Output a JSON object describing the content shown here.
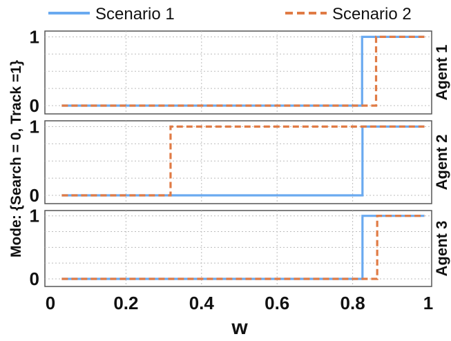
{
  "chart_data": {
    "type": "line",
    "xlabel": "w",
    "ylabel": "Mode: {Search = 0, Track =1}",
    "xlim": [
      0.03,
      0.99
    ],
    "x_ticks": [
      "0",
      "0.2",
      "0.4",
      "0.6",
      "0.8",
      "1"
    ],
    "y_ticks": [
      "0",
      "1"
    ],
    "ylim": [
      -0.15,
      1.18
    ],
    "grid": true,
    "legend": {
      "position": "top",
      "entries": [
        "Scenario 1",
        "Scenario 2"
      ]
    },
    "colors": {
      "Scenario 1": "#6aaaf0",
      "Scenario 2": "#e07b45"
    },
    "panels": [
      {
        "label": "Agent 1",
        "series": [
          {
            "name": "Scenario 1",
            "style": "solid",
            "x": [
              0.03,
              0.825,
              0.825,
              0.99
            ],
            "y": [
              0,
              0,
              1,
              1
            ]
          },
          {
            "name": "Scenario 2",
            "style": "dashed",
            "x": [
              0.03,
              0.862,
              0.862,
              0.99
            ],
            "y": [
              0,
              0,
              1,
              1
            ]
          }
        ]
      },
      {
        "label": "Agent 2",
        "series": [
          {
            "name": "Scenario 1",
            "style": "solid",
            "x": [
              0.03,
              0.826,
              0.826,
              0.99
            ],
            "y": [
              0,
              0,
              1,
              1
            ]
          },
          {
            "name": "Scenario 2",
            "style": "dashed",
            "x": [
              0.03,
              0.318,
              0.318,
              0.99
            ],
            "y": [
              0,
              0,
              1,
              1
            ]
          }
        ]
      },
      {
        "label": "Agent 3",
        "series": [
          {
            "name": "Scenario 1",
            "style": "solid",
            "x": [
              0.03,
              0.826,
              0.826,
              0.99
            ],
            "y": [
              0,
              0,
              1,
              1
            ]
          },
          {
            "name": "Scenario 2",
            "style": "dashed",
            "x": [
              0.03,
              0.865,
              0.865,
              0.99
            ],
            "y": [
              0,
              0,
              1,
              1
            ]
          }
        ]
      }
    ]
  }
}
